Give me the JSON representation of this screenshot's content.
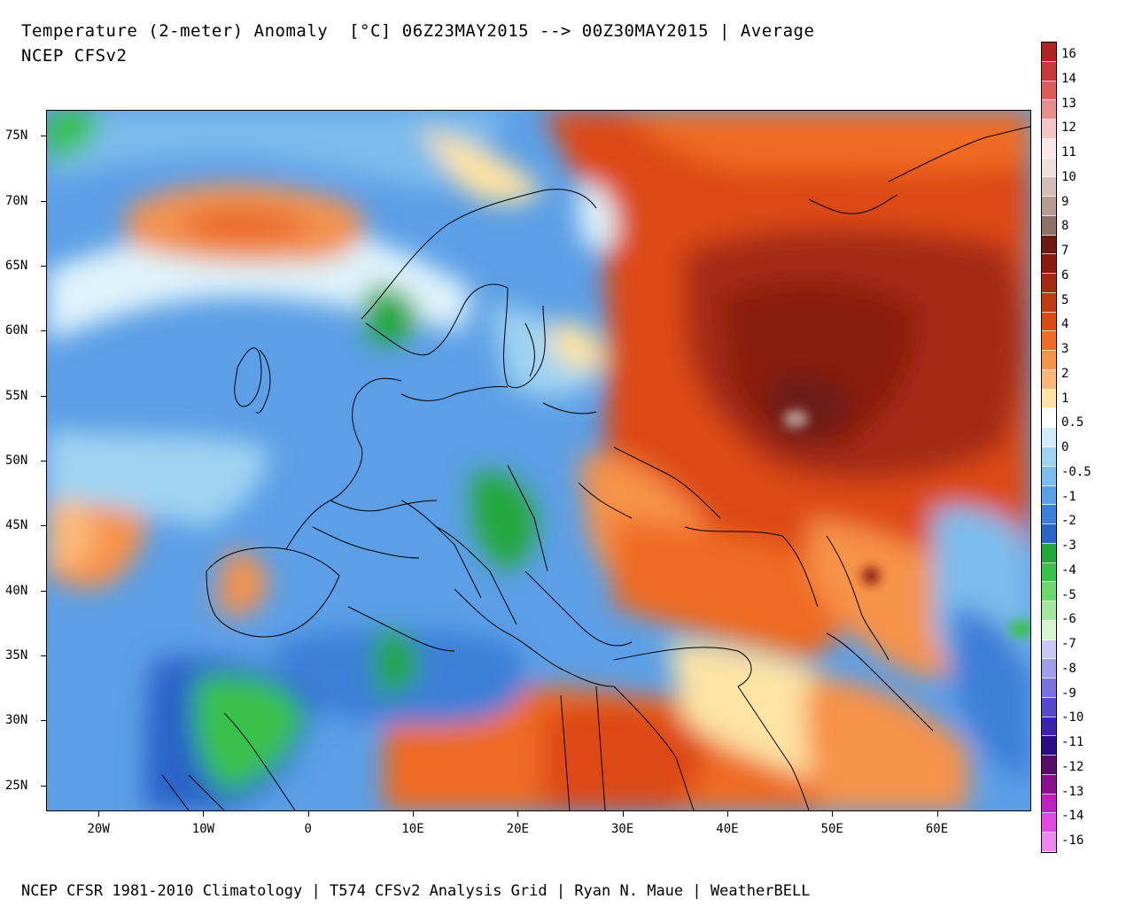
{
  "title": {
    "line1": "Temperature (2-meter) Anomaly  [°C] 06Z23MAY2015 --> 00Z30MAY2015 | Average",
    "line2": "NCEP CFSv2"
  },
  "footer": "NCEP CFSR 1981-2010 Climatology | T574 CFSv2 Analysis Grid | Ryan N. Maue | WeatherBELL",
  "map": {
    "region": "Europe / Western Russia / Middle East",
    "lon_range": [
      -25,
      69
    ],
    "lat_range": [
      23,
      77
    ],
    "lat_labels": [
      "75N",
      "70N",
      "65N",
      "60N",
      "55N",
      "50N",
      "45N",
      "40N",
      "35N",
      "30N",
      "25N"
    ],
    "lat_values": [
      75,
      70,
      65,
      60,
      55,
      50,
      45,
      40,
      35,
      30,
      25
    ],
    "lon_labels": [
      "20W",
      "10W",
      "0",
      "10E",
      "20E",
      "30E",
      "40E",
      "50E",
      "60E"
    ],
    "lon_values": [
      -20,
      -10,
      0,
      10,
      20,
      30,
      40,
      50,
      60
    ]
  },
  "colorbar": {
    "labels": [
      "16",
      "14",
      "13",
      "12",
      "11",
      "10",
      "9",
      "8",
      "7",
      "6",
      "5",
      "4",
      "3",
      "2",
      "1",
      "0.5",
      "0",
      "-0.5",
      "-1",
      "-2",
      "-3",
      "-4",
      "-5",
      "-6",
      "-7",
      "-8",
      "-9",
      "-10",
      "-11",
      "-12",
      "-13",
      "-14",
      "-16"
    ],
    "colors": [
      "#b22222",
      "#c8393a",
      "#dc5c5c",
      "#e88e8e",
      "#f5c6c6",
      "#fbe6e6",
      "#efe0dc",
      "#d4bdb5",
      "#b79a90",
      "#8f7068",
      "#6e1a12",
      "#8a1c0f",
      "#a52a12",
      "#c2380f",
      "#dd4a12",
      "#ef6a24",
      "#f7924a",
      "#fbb878",
      "#fde3a4",
      "#ffffff",
      "#cfeefa",
      "#9fd3f2",
      "#7cbcec",
      "#5c9fe6",
      "#3c7fd8",
      "#2a64c8",
      "#21a83a",
      "#38c24b",
      "#6ad86c",
      "#a4e8a0",
      "#d6f4d2",
      "#c8c8f0",
      "#a09ee8",
      "#7a72dc",
      "#5a48cc",
      "#3a22ae",
      "#2a0c86",
      "#5a0a6a",
      "#8a0e8e",
      "#c21ec2",
      "#e048e0",
      "#ee86ee"
    ]
  }
}
